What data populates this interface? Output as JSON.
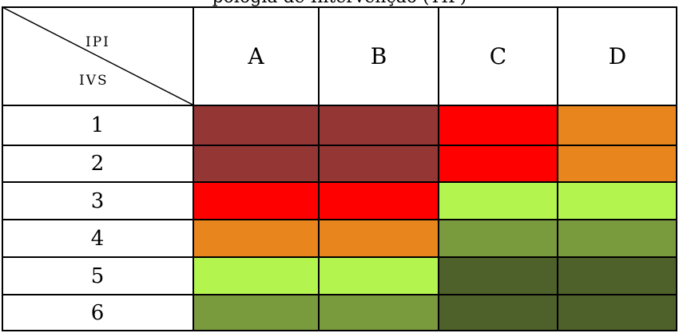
{
  "caption": "pologia de Intervenção (TIP)",
  "table": {
    "corner": {
      "top_label": "IPI",
      "bottom_label": "IVS"
    },
    "columns": [
      "A",
      "B",
      "C",
      "D"
    ],
    "rows": [
      {
        "label": "1",
        "cells": [
          "#943634",
          "#943634",
          "#ff0000",
          "#e8851c"
        ]
      },
      {
        "label": "2",
        "cells": [
          "#943634",
          "#943634",
          "#ff0000",
          "#e8851c"
        ]
      },
      {
        "label": "3",
        "cells": [
          "#ff0000",
          "#ff0000",
          "#b3f54e",
          "#b3f54e"
        ]
      },
      {
        "label": "4",
        "cells": [
          "#e8851c",
          "#e8851c",
          "#7a9a3e",
          "#7a9a3e"
        ]
      },
      {
        "label": "5",
        "cells": [
          "#b3f54e",
          "#b3f54e",
          "#4f612b",
          "#4f612b"
        ]
      },
      {
        "label": "6",
        "cells": [
          "#7a9a3e",
          "#7a9a3e",
          "#4f612b",
          "#4f612b"
        ]
      }
    ]
  }
}
